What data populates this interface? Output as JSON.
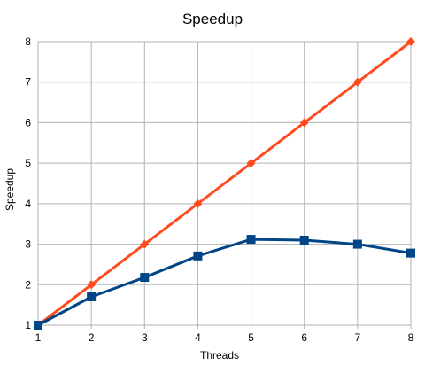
{
  "chart_data": {
    "type": "line",
    "title": "Speedup",
    "xlabel": "Threads",
    "ylabel": "Speedup",
    "x": [
      1,
      2,
      3,
      4,
      5,
      6,
      7,
      8
    ],
    "xlim": [
      1,
      8
    ],
    "ylim": [
      1,
      8
    ],
    "yticks": [
      1,
      2,
      3,
      4,
      5,
      6,
      7,
      8
    ],
    "grid": true,
    "legend": "none",
    "series": [
      {
        "values": [
          1,
          2,
          3,
          4,
          5,
          6,
          7,
          8
        ],
        "color": "#ff4b1f",
        "marker": "diamond"
      },
      {
        "values": [
          1,
          1.7,
          2.18,
          2.71,
          3.12,
          3.1,
          3.0,
          2.78
        ],
        "color": "#004586",
        "marker": "square"
      }
    ]
  }
}
